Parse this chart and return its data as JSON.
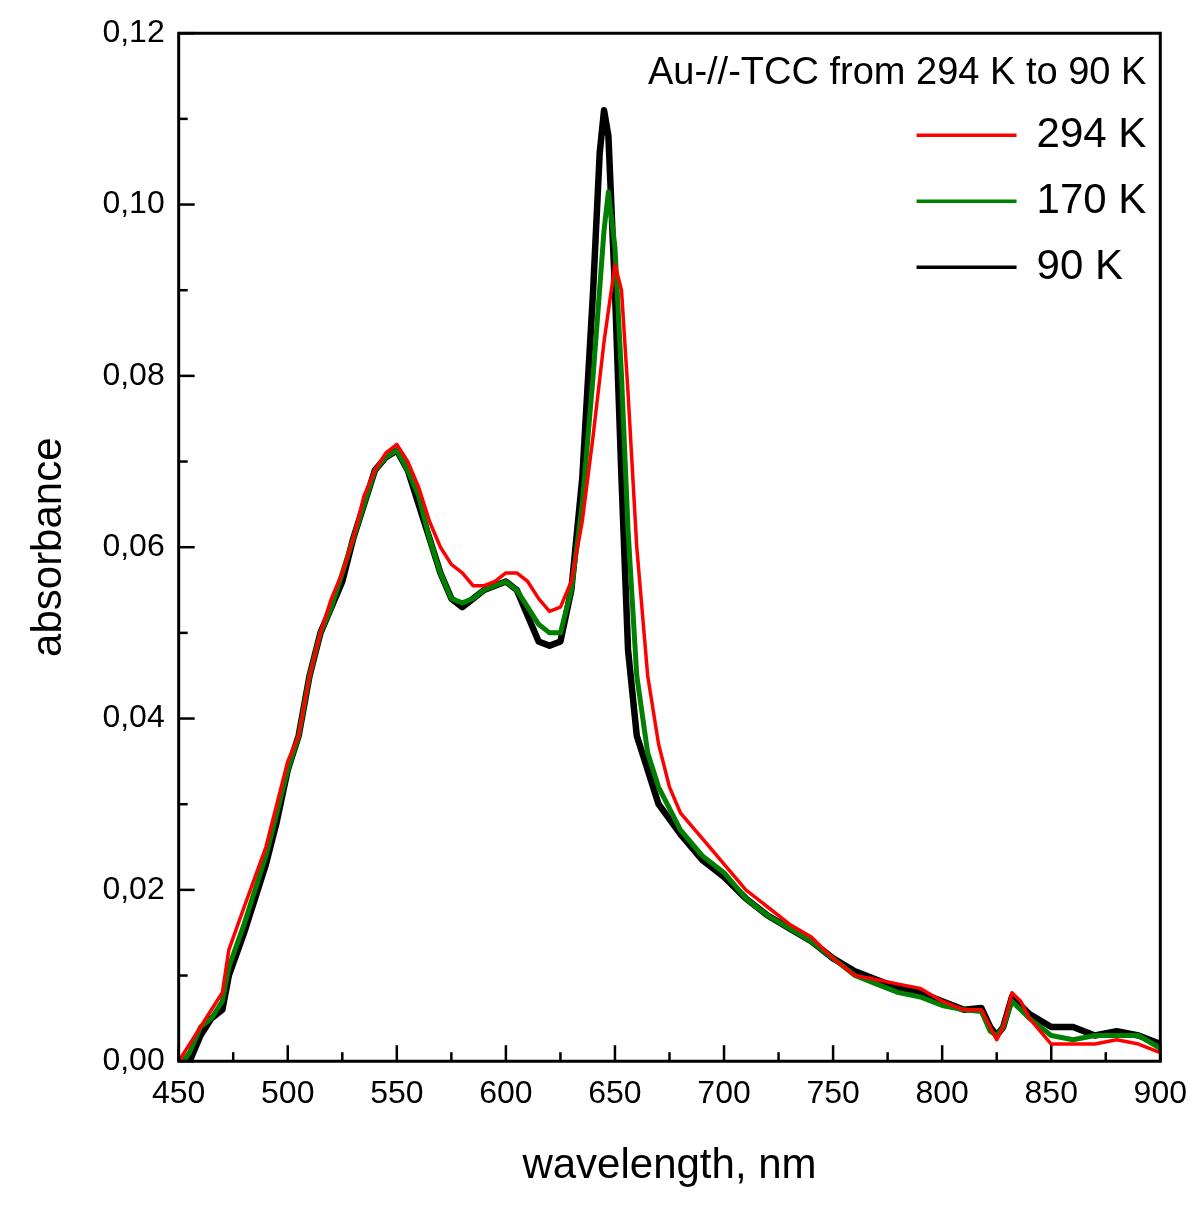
{
  "chart_data": {
    "type": "line",
    "xlabel": "wavelength, nm",
    "ylabel": "absorbance",
    "legend_title": "Au-//-TCC from 294 K to 90 K",
    "legend": "top right",
    "grid": false,
    "marker": "none",
    "line_style": "solid",
    "xlim": [
      450,
      900
    ],
    "xticks": [
      450,
      {
        "value": 475,
        "label": null
      },
      500,
      {
        "value": 525,
        "label": null
      },
      550,
      {
        "value": 575,
        "label": null
      },
      600,
      {
        "value": 625,
        "label": null
      },
      650,
      {
        "value": 675,
        "label": null
      },
      700,
      {
        "value": 725,
        "label": null
      },
      750,
      {
        "value": 775,
        "label": null
      },
      800,
      {
        "value": 825,
        "label": null
      },
      850,
      {
        "value": 875,
        "label": null
      },
      900
    ],
    "ylim": [
      0,
      0.12
    ],
    "yticks": [
      {
        "value": 0,
        "label": "0,00"
      },
      {
        "value": 0.01,
        "label": null
      },
      {
        "value": 0.02,
        "label": "0,02"
      },
      {
        "value": 0.03,
        "label": null
      },
      {
        "value": 0.04,
        "label": "0,04"
      },
      {
        "value": 0.05,
        "label": null
      },
      {
        "value": 0.06,
        "label": "0,06"
      },
      {
        "value": 0.07,
        "label": null
      },
      {
        "value": 0.08,
        "label": "0,08"
      },
      {
        "value": 0.09,
        "label": null
      },
      {
        "value": 0.1,
        "label": "0,10"
      },
      {
        "value": 0.11,
        "label": null
      },
      {
        "value": 0.12,
        "label": "0,12"
      }
    ],
    "series": [
      {
        "name": "294 K",
        "color": "#ff0000",
        "x": [
          450,
          455,
          460,
          465,
          470,
          473,
          480,
          490,
          495,
          500,
          505,
          510,
          515,
          520,
          525,
          530,
          535,
          540,
          545,
          550,
          555,
          560,
          565,
          570,
          575,
          580,
          585,
          590,
          595,
          600,
          605,
          610,
          615,
          620,
          625,
          630,
          635,
          640,
          645,
          650,
          653,
          656,
          660,
          665,
          670,
          675,
          680,
          690,
          700,
          710,
          720,
          730,
          740,
          750,
          760,
          770,
          780,
          790,
          800,
          810,
          818,
          822,
          825,
          828,
          832,
          836,
          840,
          850,
          860,
          870,
          880,
          890,
          900
        ],
        "values": [
          0,
          0.002,
          0.004,
          0.006,
          0.008,
          0.013,
          0.018,
          0.025,
          0.03,
          0.035,
          0.038,
          0.045,
          0.05,
          0.054,
          0.057,
          0.061,
          0.066,
          0.069,
          0.071,
          0.072,
          0.07,
          0.067,
          0.063,
          0.06,
          0.058,
          0.057,
          0.0555,
          0.0555,
          0.056,
          0.057,
          0.057,
          0.056,
          0.054,
          0.0525,
          0.053,
          0.056,
          0.063,
          0.073,
          0.084,
          0.093,
          0.09,
          0.078,
          0.06,
          0.045,
          0.037,
          0.032,
          0.029,
          0.026,
          0.023,
          0.02,
          0.018,
          0.016,
          0.0145,
          0.012,
          0.01,
          0.0095,
          0.009,
          0.0085,
          0.007,
          0.006,
          0.006,
          0.004,
          0.0025,
          0.004,
          0.008,
          0.007,
          0.005,
          0.002,
          0.002,
          0.002,
          0.0025,
          0.002,
          0.001
        ]
      },
      {
        "name": "170 K",
        "color": "#008000",
        "x": [
          452,
          455,
          460,
          465,
          470,
          473,
          480,
          490,
          495,
          500,
          505,
          510,
          515,
          520,
          525,
          530,
          535,
          540,
          545,
          550,
          555,
          560,
          565,
          570,
          575,
          580,
          585,
          590,
          595,
          600,
          605,
          610,
          615,
          620,
          625,
          630,
          635,
          640,
          645,
          647,
          650,
          653,
          656,
          660,
          665,
          670,
          680,
          690,
          700,
          710,
          720,
          730,
          740,
          750,
          760,
          770,
          780,
          790,
          800,
          810,
          818,
          822,
          825,
          828,
          832,
          836,
          840,
          850,
          860,
          870,
          880,
          890,
          900
        ],
        "values": [
          0,
          0.001,
          0.004,
          0.005,
          0.007,
          0.011,
          0.016,
          0.024,
          0.029,
          0.034,
          0.038,
          0.045,
          0.05,
          0.053,
          0.057,
          0.061,
          0.065,
          0.069,
          0.0705,
          0.0713,
          0.069,
          0.066,
          0.061,
          0.057,
          0.054,
          0.0535,
          0.054,
          0.055,
          0.0555,
          0.056,
          0.055,
          0.053,
          0.051,
          0.05,
          0.05,
          0.055,
          0.065,
          0.08,
          0.097,
          0.1015,
          0.095,
          0.08,
          0.062,
          0.045,
          0.036,
          0.032,
          0.027,
          0.024,
          0.022,
          0.019,
          0.017,
          0.0155,
          0.014,
          0.012,
          0.01,
          0.009,
          0.008,
          0.0075,
          0.0065,
          0.006,
          0.0058,
          0.0035,
          0.003,
          0.004,
          0.007,
          0.006,
          0.005,
          0.003,
          0.0025,
          0.003,
          0.003,
          0.003,
          0.0015
        ]
      },
      {
        "name": "90 K",
        "color": "#000000",
        "x": [
          455,
          460,
          465,
          470,
          473,
          480,
          490,
          495,
          500,
          505,
          510,
          515,
          520,
          525,
          530,
          535,
          540,
          545,
          550,
          555,
          560,
          565,
          570,
          575,
          580,
          585,
          590,
          595,
          600,
          605,
          610,
          615,
          620,
          625,
          630,
          635,
          640,
          643,
          645,
          647,
          650,
          653,
          656,
          660,
          665,
          670,
          680,
          690,
          700,
          710,
          720,
          730,
          740,
          750,
          760,
          770,
          780,
          790,
          800,
          810,
          818,
          822,
          825,
          828,
          832,
          836,
          840,
          850,
          860,
          870,
          880,
          890,
          900
        ],
        "values": [
          0,
          0.003,
          0.005,
          0.006,
          0.01,
          0.015,
          0.023,
          0.028,
          0.034,
          0.038,
          0.045,
          0.05,
          0.053,
          0.056,
          0.061,
          0.065,
          0.069,
          0.0705,
          0.0713,
          0.069,
          0.065,
          0.061,
          0.057,
          0.054,
          0.053,
          0.054,
          0.055,
          0.0555,
          0.056,
          0.055,
          0.052,
          0.049,
          0.0485,
          0.049,
          0.055,
          0.068,
          0.09,
          0.106,
          0.111,
          0.108,
          0.09,
          0.068,
          0.048,
          0.038,
          0.034,
          0.03,
          0.0265,
          0.0235,
          0.0215,
          0.019,
          0.017,
          0.0155,
          0.014,
          0.012,
          0.0105,
          0.0095,
          0.0085,
          0.008,
          0.007,
          0.006,
          0.0062,
          0.004,
          0.003,
          0.004,
          0.0075,
          0.0065,
          0.0055,
          0.004,
          0.004,
          0.003,
          0.0035,
          0.003,
          0.002
        ]
      }
    ]
  }
}
